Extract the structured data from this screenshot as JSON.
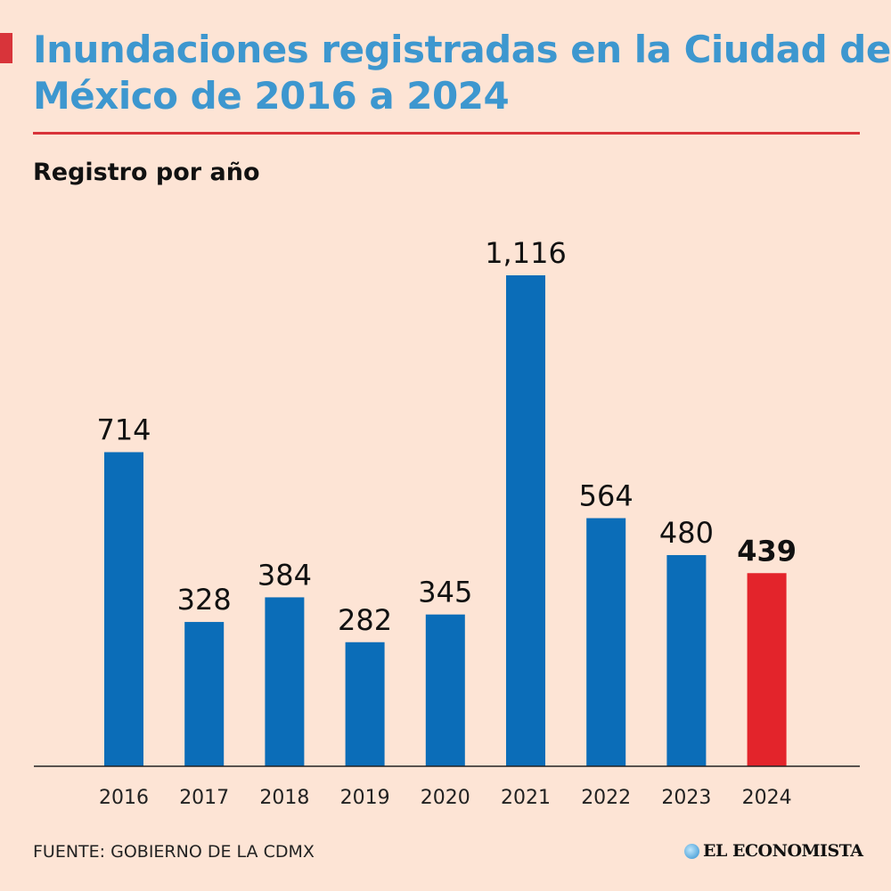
{
  "title": "Inundaciones registradas en la Ciudad de México de 2016 a 2024",
  "subtitle": "Registro por año",
  "source": "FUENTE: GOBIERNO DE LA CDMX",
  "logo": "EL ECONOMISTA",
  "colors": {
    "background": "#fde4d5",
    "bar": "#0b6db8",
    "highlight": "#e3242b",
    "title": "#3d97cf",
    "accent": "#d8343a"
  },
  "chart_data": {
    "type": "bar",
    "title": "Inundaciones registradas en la Ciudad de México de 2016 a 2024",
    "subtitle": "Registro por año",
    "categories": [
      "2016",
      "2017",
      "2018",
      "2019",
      "2020",
      "2021",
      "2022",
      "2023",
      "2024"
    ],
    "values": [
      714,
      328,
      384,
      282,
      345,
      1116,
      564,
      480,
      439
    ],
    "labels": [
      "714",
      "328",
      "384",
      "282",
      "345",
      "1,116",
      "564",
      "480",
      "439"
    ],
    "highlight": "2024",
    "ylim": [
      0,
      1116
    ],
    "grid": false,
    "xlabel": "",
    "ylabel": ""
  }
}
